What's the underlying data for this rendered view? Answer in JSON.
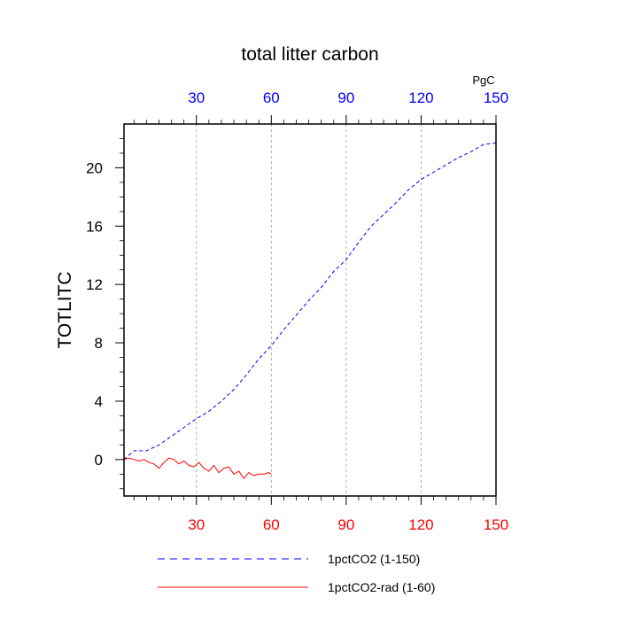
{
  "chart_data": {
    "type": "line",
    "title": "total litter carbon",
    "ylabel": "TOTLITC",
    "unit_label": "PgC",
    "xlim": [
      1,
      150
    ],
    "ylim": [
      -2.5,
      23
    ],
    "x_ticks": [
      30,
      60,
      90,
      120,
      150
    ],
    "y_ticks": [
      0,
      4,
      8,
      12,
      16,
      20
    ],
    "grid": "vertical dashed",
    "top_axis_color": "#0000ff",
    "bottom_axis_color": "#ff0000",
    "series": [
      {
        "name": "1pctCO2 (1-150)",
        "color": "#0000ff",
        "dash": "dashed",
        "x": [
          1,
          5,
          10,
          15,
          20,
          25,
          30,
          35,
          40,
          45,
          50,
          55,
          60,
          65,
          70,
          75,
          80,
          85,
          90,
          95,
          100,
          105,
          110,
          115,
          120,
          125,
          130,
          135,
          140,
          145,
          150
        ],
        "y": [
          0.0,
          0.6,
          0.6,
          1.0,
          1.6,
          2.2,
          2.8,
          3.3,
          4.0,
          4.8,
          5.8,
          6.9,
          7.8,
          8.9,
          9.9,
          10.9,
          11.8,
          12.9,
          13.7,
          14.9,
          16.0,
          16.8,
          17.6,
          18.5,
          19.2,
          19.7,
          20.2,
          20.7,
          21.1,
          21.6,
          21.7
        ]
      },
      {
        "name": "1pctCO2-rad (1-60)",
        "color": "#ff0000",
        "dash": "solid",
        "x": [
          1,
          3,
          5,
          7,
          9,
          11,
          13,
          15,
          17,
          19,
          21,
          23,
          25,
          27,
          29,
          31,
          33,
          35,
          37,
          39,
          41,
          43,
          45,
          47,
          49,
          51,
          53,
          55,
          57,
          59,
          60
        ],
        "y": [
          0.0,
          0.1,
          0.0,
          -0.1,
          0.0,
          -0.2,
          -0.3,
          -0.6,
          -0.2,
          0.1,
          0.0,
          -0.3,
          -0.1,
          -0.4,
          -0.5,
          -0.2,
          -0.6,
          -0.8,
          -0.4,
          -0.9,
          -0.6,
          -0.5,
          -1.0,
          -0.8,
          -1.3,
          -0.9,
          -1.1,
          -1.0,
          -1.0,
          -0.9,
          -1.0
        ]
      }
    ]
  }
}
